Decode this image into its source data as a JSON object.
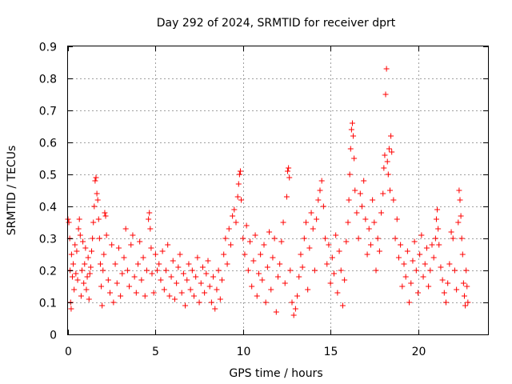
{
  "chart_data": {
    "type": "scatter",
    "title": "Day 292 of 2024, SRMTID for receiver dprt",
    "xlabel": "GPS time / hours",
    "ylabel": "SRMTID / TECUs",
    "xlim": [
      0,
      24
    ],
    "ylim": [
      0,
      0.9
    ],
    "xticks": [
      0,
      5,
      10,
      15,
      20
    ],
    "yticks": [
      0,
      0.1,
      0.2,
      0.3,
      0.4,
      0.5,
      0.6,
      0.7,
      0.8,
      0.9
    ],
    "xtick_labels": [
      "0",
      "5",
      "10",
      "15",
      "20"
    ],
    "ytick_labels": [
      "0",
      "0.1",
      "0.2",
      "0.3",
      "0.4",
      "0.5",
      "0.6",
      "0.7",
      "0.8",
      "0.9"
    ],
    "grid": true,
    "marker": "+",
    "color": "#ff0000",
    "series": [
      {
        "name": "SRMTID",
        "points": [
          [
            0.0,
            0.36
          ],
          [
            0.05,
            0.35
          ],
          [
            0.1,
            0.3
          ],
          [
            0.12,
            0.2
          ],
          [
            0.15,
            0.1
          ],
          [
            0.18,
            0.08
          ],
          [
            0.2,
            0.25
          ],
          [
            0.25,
            0.18
          ],
          [
            0.3,
            0.22
          ],
          [
            0.35,
            0.14
          ],
          [
            0.4,
            0.28
          ],
          [
            0.45,
            0.19
          ],
          [
            0.5,
            0.26
          ],
          [
            0.55,
            0.17
          ],
          [
            0.6,
            0.33
          ],
          [
            0.65,
            0.36
          ],
          [
            0.7,
            0.31
          ],
          [
            0.75,
            0.12
          ],
          [
            0.8,
            0.2
          ],
          [
            0.85,
            0.29
          ],
          [
            0.9,
            0.16
          ],
          [
            0.95,
            0.22
          ],
          [
            1.0,
            0.27
          ],
          [
            1.05,
            0.14
          ],
          [
            1.1,
            0.18
          ],
          [
            1.15,
            0.24
          ],
          [
            1.2,
            0.11
          ],
          [
            1.25,
            0.19
          ],
          [
            1.3,
            0.21
          ],
          [
            1.35,
            0.26
          ],
          [
            1.4,
            0.3
          ],
          [
            1.45,
            0.35
          ],
          [
            1.5,
            0.4
          ],
          [
            1.55,
            0.48
          ],
          [
            1.6,
            0.49
          ],
          [
            1.65,
            0.44
          ],
          [
            1.7,
            0.42
          ],
          [
            1.75,
            0.36
          ],
          [
            1.8,
            0.3
          ],
          [
            1.85,
            0.22
          ],
          [
            1.9,
            0.15
          ],
          [
            1.95,
            0.09
          ],
          [
            2.0,
            0.2
          ],
          [
            2.05,
            0.25
          ],
          [
            2.1,
            0.38
          ],
          [
            2.15,
            0.37
          ],
          [
            2.2,
            0.31
          ],
          [
            2.3,
            0.17
          ],
          [
            2.4,
            0.13
          ],
          [
            2.5,
            0.28
          ],
          [
            2.6,
            0.1
          ],
          [
            2.7,
            0.22
          ],
          [
            2.8,
            0.16
          ],
          [
            2.9,
            0.27
          ],
          [
            3.0,
            0.12
          ],
          [
            3.1,
            0.19
          ],
          [
            3.2,
            0.24
          ],
          [
            3.3,
            0.33
          ],
          [
            3.4,
            0.2
          ],
          [
            3.5,
            0.15
          ],
          [
            3.6,
            0.28
          ],
          [
            3.7,
            0.31
          ],
          [
            3.8,
            0.18
          ],
          [
            3.9,
            0.13
          ],
          [
            4.0,
            0.22
          ],
          [
            4.1,
            0.29
          ],
          [
            4.2,
            0.17
          ],
          [
            4.3,
            0.24
          ],
          [
            4.4,
            0.12
          ],
          [
            4.5,
            0.2
          ],
          [
            4.6,
            0.36
          ],
          [
            4.65,
            0.38
          ],
          [
            4.7,
            0.33
          ],
          [
            4.75,
            0.27
          ],
          [
            4.8,
            0.19
          ],
          [
            4.9,
            0.13
          ],
          [
            5.0,
            0.25
          ],
          [
            5.1,
            0.2
          ],
          [
            5.2,
            0.22
          ],
          [
            5.3,
            0.17
          ],
          [
            5.4,
            0.26
          ],
          [
            5.5,
            0.14
          ],
          [
            5.6,
            0.2
          ],
          [
            5.7,
            0.28
          ],
          [
            5.8,
            0.12
          ],
          [
            5.9,
            0.18
          ],
          [
            6.0,
            0.23
          ],
          [
            6.1,
            0.11
          ],
          [
            6.2,
            0.16
          ],
          [
            6.3,
            0.21
          ],
          [
            6.4,
            0.25
          ],
          [
            6.5,
            0.13
          ],
          [
            6.6,
            0.19
          ],
          [
            6.7,
            0.09
          ],
          [
            6.8,
            0.17
          ],
          [
            6.9,
            0.22
          ],
          [
            7.0,
            0.14
          ],
          [
            7.1,
            0.2
          ],
          [
            7.2,
            0.12
          ],
          [
            7.3,
            0.18
          ],
          [
            7.4,
            0.24
          ],
          [
            7.5,
            0.1
          ],
          [
            7.6,
            0.16
          ],
          [
            7.7,
            0.21
          ],
          [
            7.8,
            0.13
          ],
          [
            7.9,
            0.19
          ],
          [
            8.0,
            0.23
          ],
          [
            8.1,
            0.15
          ],
          [
            8.2,
            0.1
          ],
          [
            8.3,
            0.18
          ],
          [
            8.4,
            0.08
          ],
          [
            8.5,
            0.14
          ],
          [
            8.6,
            0.2
          ],
          [
            8.7,
            0.11
          ],
          [
            8.8,
            0.17
          ],
          [
            8.9,
            0.25
          ],
          [
            9.0,
            0.3
          ],
          [
            9.1,
            0.22
          ],
          [
            9.2,
            0.33
          ],
          [
            9.3,
            0.28
          ],
          [
            9.4,
            0.37
          ],
          [
            9.5,
            0.39
          ],
          [
            9.6,
            0.35
          ],
          [
            9.7,
            0.43
          ],
          [
            9.75,
            0.47
          ],
          [
            9.8,
            0.5
          ],
          [
            9.85,
            0.51
          ],
          [
            9.9,
            0.42
          ],
          [
            10.0,
            0.3
          ],
          [
            10.1,
            0.25
          ],
          [
            10.2,
            0.34
          ],
          [
            10.3,
            0.2
          ],
          [
            10.4,
            0.29
          ],
          [
            10.5,
            0.15
          ],
          [
            10.6,
            0.23
          ],
          [
            10.7,
            0.31
          ],
          [
            10.8,
            0.12
          ],
          [
            10.9,
            0.19
          ],
          [
            11.0,
            0.25
          ],
          [
            11.1,
            0.17
          ],
          [
            11.2,
            0.28
          ],
          [
            11.3,
            0.1
          ],
          [
            11.4,
            0.21
          ],
          [
            11.5,
            0.32
          ],
          [
            11.6,
            0.14
          ],
          [
            11.7,
            0.24
          ],
          [
            11.8,
            0.3
          ],
          [
            11.9,
            0.07
          ],
          [
            12.0,
            0.18
          ],
          [
            12.1,
            0.22
          ],
          [
            12.2,
            0.29
          ],
          [
            12.3,
            0.35
          ],
          [
            12.4,
            0.16
          ],
          [
            12.5,
            0.43
          ],
          [
            12.55,
            0.51
          ],
          [
            12.6,
            0.52
          ],
          [
            12.65,
            0.49
          ],
          [
            12.7,
            0.2
          ],
          [
            12.8,
            0.1
          ],
          [
            12.9,
            0.06
          ],
          [
            13.0,
            0.08
          ],
          [
            13.1,
            0.12
          ],
          [
            13.2,
            0.18
          ],
          [
            13.3,
            0.25
          ],
          [
            13.4,
            0.21
          ],
          [
            13.5,
            0.3
          ],
          [
            13.6,
            0.35
          ],
          [
            13.7,
            0.14
          ],
          [
            13.8,
            0.27
          ],
          [
            13.9,
            0.38
          ],
          [
            14.0,
            0.33
          ],
          [
            14.1,
            0.2
          ],
          [
            14.2,
            0.36
          ],
          [
            14.3,
            0.42
          ],
          [
            14.4,
            0.45
          ],
          [
            14.5,
            0.48
          ],
          [
            14.6,
            0.4
          ],
          [
            14.7,
            0.3
          ],
          [
            14.8,
            0.22
          ],
          [
            14.9,
            0.28
          ],
          [
            15.0,
            0.16
          ],
          [
            15.1,
            0.24
          ],
          [
            15.2,
            0.19
          ],
          [
            15.3,
            0.31
          ],
          [
            15.4,
            0.13
          ],
          [
            15.5,
            0.26
          ],
          [
            15.6,
            0.2
          ],
          [
            15.7,
            0.09
          ],
          [
            15.8,
            0.17
          ],
          [
            15.9,
            0.29
          ],
          [
            16.0,
            0.35
          ],
          [
            16.05,
            0.42
          ],
          [
            16.1,
            0.5
          ],
          [
            16.15,
            0.58
          ],
          [
            16.2,
            0.64
          ],
          [
            16.25,
            0.66
          ],
          [
            16.3,
            0.62
          ],
          [
            16.35,
            0.55
          ],
          [
            16.4,
            0.45
          ],
          [
            16.5,
            0.38
          ],
          [
            16.6,
            0.3
          ],
          [
            16.7,
            0.44
          ],
          [
            16.8,
            0.4
          ],
          [
            16.9,
            0.48
          ],
          [
            17.0,
            0.36
          ],
          [
            17.1,
            0.25
          ],
          [
            17.2,
            0.33
          ],
          [
            17.3,
            0.28
          ],
          [
            17.4,
            0.42
          ],
          [
            17.5,
            0.35
          ],
          [
            17.6,
            0.2
          ],
          [
            17.7,
            0.3
          ],
          [
            17.8,
            0.26
          ],
          [
            17.9,
            0.38
          ],
          [
            18.0,
            0.44
          ],
          [
            18.05,
            0.52
          ],
          [
            18.1,
            0.56
          ],
          [
            18.15,
            0.75
          ],
          [
            18.2,
            0.83
          ],
          [
            18.25,
            0.54
          ],
          [
            18.3,
            0.5
          ],
          [
            18.35,
            0.58
          ],
          [
            18.4,
            0.45
          ],
          [
            18.45,
            0.62
          ],
          [
            18.5,
            0.57
          ],
          [
            18.6,
            0.42
          ],
          [
            18.7,
            0.3
          ],
          [
            18.8,
            0.36
          ],
          [
            18.9,
            0.24
          ],
          [
            19.0,
            0.28
          ],
          [
            19.1,
            0.15
          ],
          [
            19.2,
            0.22
          ],
          [
            19.3,
            0.18
          ],
          [
            19.4,
            0.26
          ],
          [
            19.5,
            0.1
          ],
          [
            19.6,
            0.16
          ],
          [
            19.7,
            0.23
          ],
          [
            19.8,
            0.29
          ],
          [
            19.9,
            0.2
          ],
          [
            20.0,
            0.13
          ],
          [
            20.1,
            0.25
          ],
          [
            20.2,
            0.31
          ],
          [
            20.3,
            0.18
          ],
          [
            20.4,
            0.22
          ],
          [
            20.5,
            0.27
          ],
          [
            20.6,
            0.15
          ],
          [
            20.7,
            0.2
          ],
          [
            20.8,
            0.28
          ],
          [
            20.9,
            0.24
          ],
          [
            21.0,
            0.3
          ],
          [
            21.05,
            0.36
          ],
          [
            21.1,
            0.39
          ],
          [
            21.15,
            0.33
          ],
          [
            21.2,
            0.28
          ],
          [
            21.3,
            0.21
          ],
          [
            21.4,
            0.17
          ],
          [
            21.5,
            0.13
          ],
          [
            21.6,
            0.1
          ],
          [
            21.7,
            0.16
          ],
          [
            21.8,
            0.22
          ],
          [
            21.9,
            0.32
          ],
          [
            22.0,
            0.3
          ],
          [
            22.1,
            0.2
          ],
          [
            22.2,
            0.14
          ],
          [
            22.3,
            0.35
          ],
          [
            22.35,
            0.45
          ],
          [
            22.4,
            0.42
          ],
          [
            22.45,
            0.37
          ],
          [
            22.5,
            0.3
          ],
          [
            22.55,
            0.25
          ],
          [
            22.6,
            0.16
          ],
          [
            22.65,
            0.12
          ],
          [
            22.7,
            0.09
          ],
          [
            22.75,
            0.2
          ],
          [
            22.8,
            0.15
          ],
          [
            22.85,
            0.1
          ]
        ]
      }
    ]
  }
}
